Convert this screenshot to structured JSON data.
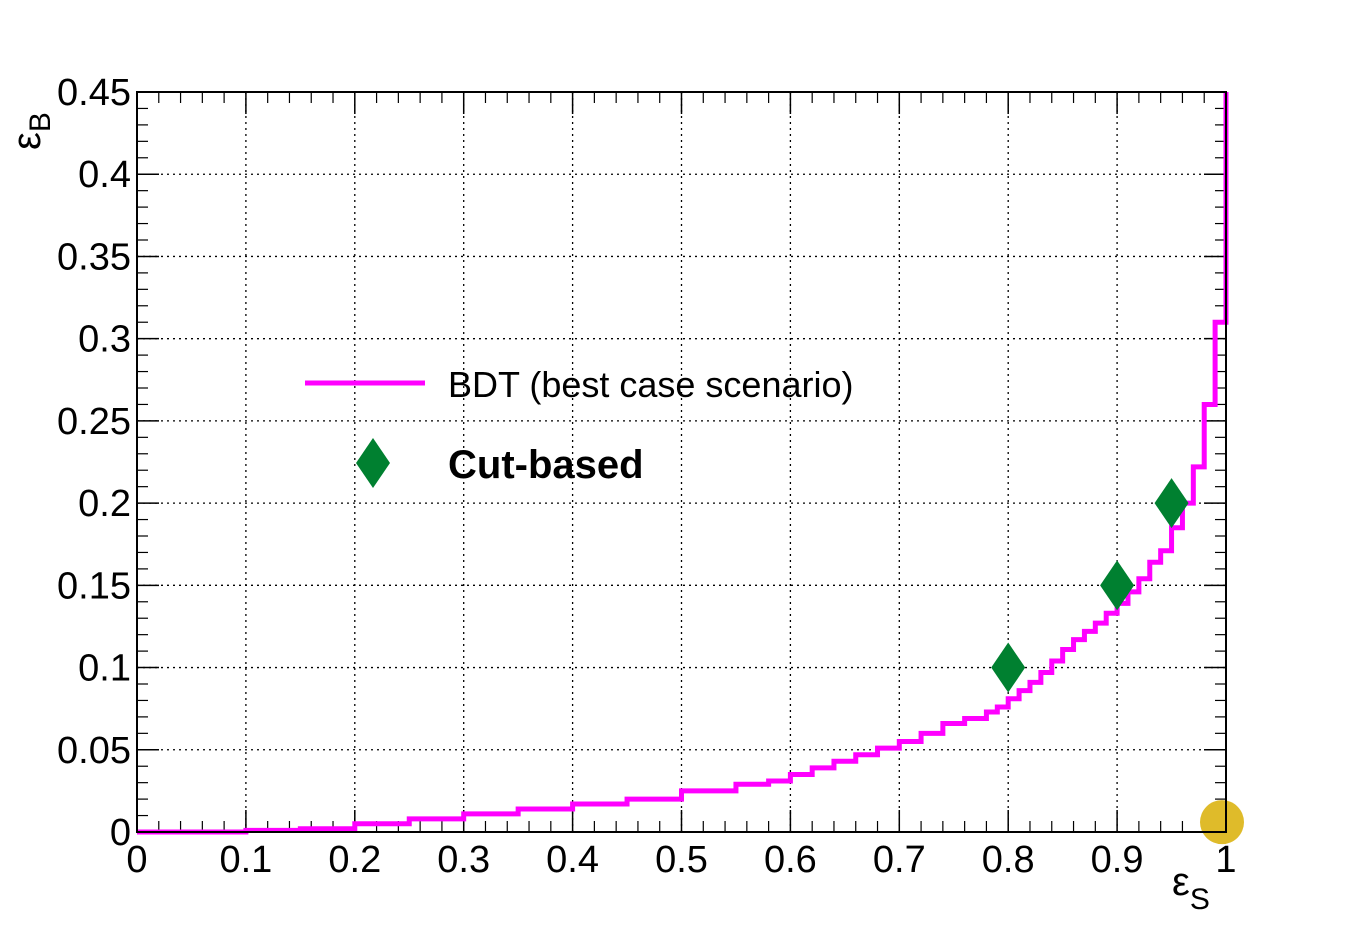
{
  "chart_data": {
    "type": "line",
    "xlabel": "ε",
    "xlabel_sub": "S",
    "ylabel": "ε",
    "ylabel_sub": "B",
    "xlim": [
      0,
      1
    ],
    "ylim": [
      0,
      0.45
    ],
    "grid": true,
    "x_ticks": [
      0,
      0.1,
      0.2,
      0.3,
      0.4,
      0.5,
      0.6,
      0.7,
      0.8,
      0.9,
      1
    ],
    "x_tick_labels": [
      "0",
      "0.1",
      "0.2",
      "0.3",
      "0.4",
      "0.5",
      "0.6",
      "0.7",
      "0.8",
      "0.9",
      "1"
    ],
    "y_ticks": [
      0,
      0.05,
      0.1,
      0.15,
      0.2,
      0.25,
      0.3,
      0.35,
      0.4,
      0.45
    ],
    "y_tick_labels": [
      "0",
      "0.05",
      "0.1",
      "0.15",
      "0.2",
      "0.25",
      "0.3",
      "0.35",
      "0.4",
      "0.45"
    ],
    "legend_placement": "center-left",
    "series": [
      {
        "name": "BDT (best case scenario)",
        "style": "step",
        "color": "#ff00ff",
        "x": [
          0,
          0.05,
          0.1,
          0.15,
          0.2,
          0.25,
          0.3,
          0.35,
          0.4,
          0.45,
          0.5,
          0.55,
          0.58,
          0.6,
          0.62,
          0.64,
          0.66,
          0.68,
          0.7,
          0.72,
          0.74,
          0.76,
          0.78,
          0.79,
          0.8,
          0.81,
          0.82,
          0.83,
          0.84,
          0.85,
          0.86,
          0.87,
          0.88,
          0.89,
          0.9,
          0.91,
          0.92,
          0.93,
          0.94,
          0.95,
          0.96,
          0.97,
          0.98,
          0.99,
          1.0
        ],
        "y": [
          0.0,
          0.0,
          0.001,
          0.002,
          0.005,
          0.008,
          0.011,
          0.014,
          0.017,
          0.02,
          0.025,
          0.029,
          0.031,
          0.035,
          0.039,
          0.043,
          0.047,
          0.051,
          0.055,
          0.06,
          0.066,
          0.069,
          0.073,
          0.076,
          0.081,
          0.086,
          0.091,
          0.097,
          0.104,
          0.111,
          0.117,
          0.122,
          0.127,
          0.133,
          0.139,
          0.146,
          0.154,
          0.164,
          0.171,
          0.185,
          0.2,
          0.222,
          0.26,
          0.31,
          0.45
        ]
      },
      {
        "name": "Cut-based",
        "style": "marker",
        "marker": "diamond",
        "color": "#008030",
        "x": [
          0.8,
          0.9,
          0.95
        ],
        "y": [
          0.1,
          0.15,
          0.2
        ]
      },
      {
        "name": "",
        "style": "marker",
        "marker": "circle",
        "color": "#dfbb2a",
        "x": [
          1.0
        ],
        "y": [
          0.006
        ]
      }
    ]
  }
}
